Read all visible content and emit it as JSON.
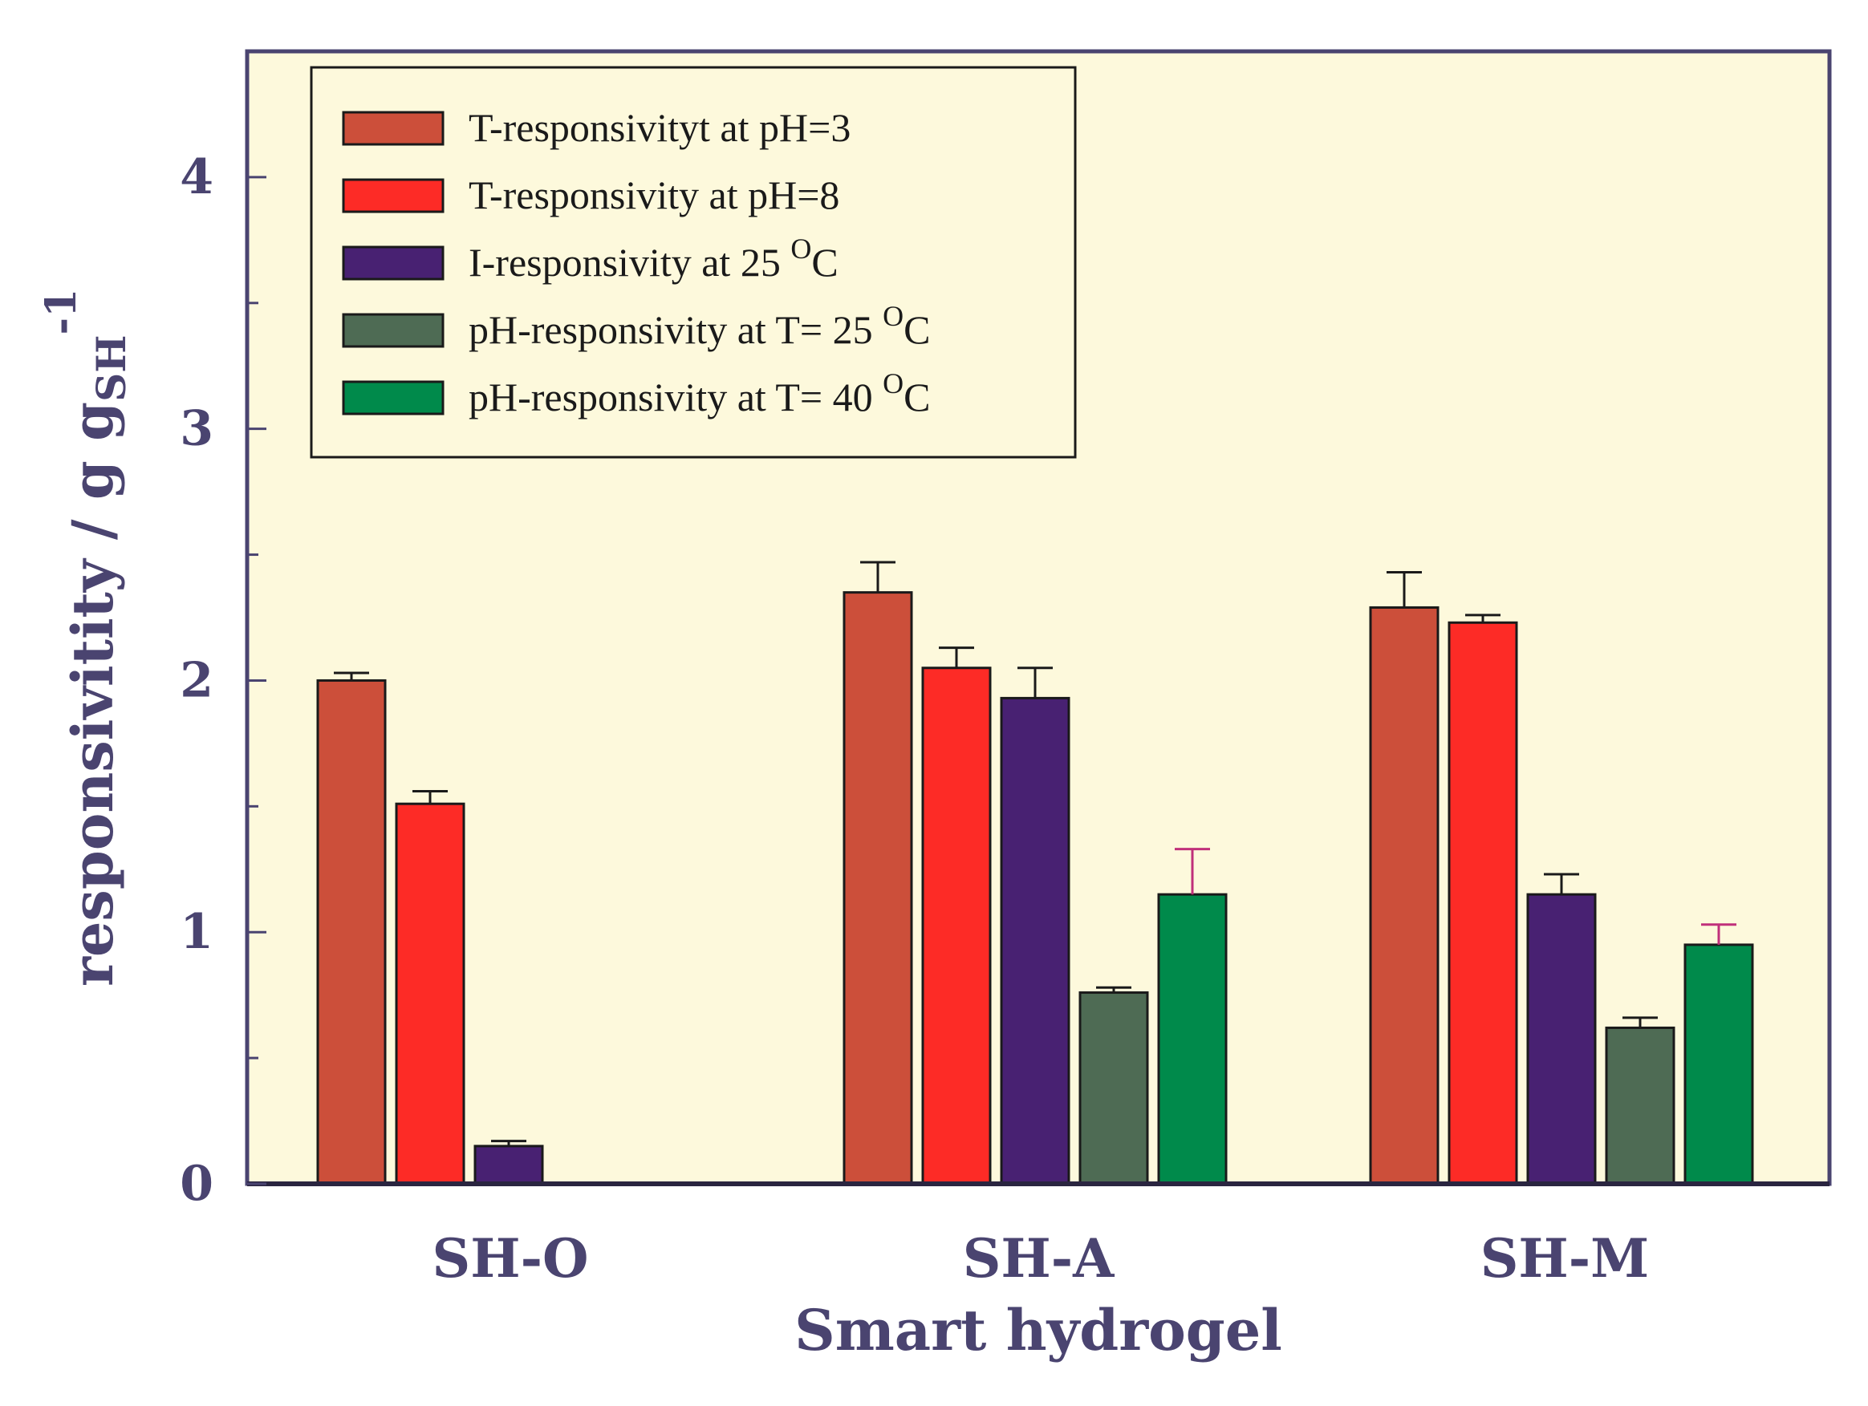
{
  "chart_data": {
    "type": "bar",
    "categories": [
      "SH-O",
      "SH-A",
      "SH-M"
    ],
    "xlabel": "Smart hydrogel",
    "ylabel": "responsivitity / g g",
    "ylabel_sub": "SH",
    "ylabel_sup": "-1",
    "ylim": [
      0,
      4.5
    ],
    "yticks": [
      0,
      1,
      2,
      3,
      4
    ],
    "grid": false,
    "legend_position": "top-left",
    "background_color": "#fdf9dc",
    "series": [
      {
        "name": "T-responsivityt at pH=3",
        "legend_main": "T-responsivityt at pH=3",
        "legend_sup": "",
        "legend_tail": "",
        "color": "#cc4f3a",
        "errorbar_color": "#1a1a1a",
        "values": [
          2.0,
          2.35,
          2.29
        ],
        "errors": [
          0.03,
          0.12,
          0.14
        ]
      },
      {
        "name": "T-responsivity at pH=8",
        "legend_main": "T-responsivity at pH=8",
        "legend_sup": "",
        "legend_tail": "",
        "color": "#fd2b26",
        "errorbar_color": "#1a1a1a",
        "values": [
          1.51,
          2.05,
          2.23
        ],
        "errors": [
          0.05,
          0.08,
          0.03
        ]
      },
      {
        "name": "I-responsivity at 25 oC",
        "legend_main": "I-responsivity at 25 ",
        "legend_sup": "O",
        "legend_tail": "C",
        "color": "#482172",
        "errorbar_color": "#1a1a1a",
        "values": [
          0.15,
          1.93,
          1.15
        ],
        "errors": [
          0.02,
          0.12,
          0.08
        ]
      },
      {
        "name": "pH-responsivity at T= 25 oC",
        "legend_main": "pH-responsivity at T= 25 ",
        "legend_sup": "O",
        "legend_tail": "C",
        "color": "#4e6b54",
        "errorbar_color": "#1a1a1a",
        "values": [
          null,
          0.76,
          0.62
        ],
        "errors": [
          null,
          0.02,
          0.04
        ]
      },
      {
        "name": "pH-responsivity at T= 40 oC",
        "legend_main": "pH-responsivity at T= 40  ",
        "legend_sup": "O",
        "legend_tail": "C",
        "color": "#008a4b",
        "errorbar_color": "#c0307a",
        "values": [
          null,
          1.15,
          0.95
        ],
        "errors": [
          null,
          0.18,
          0.08
        ]
      }
    ]
  }
}
